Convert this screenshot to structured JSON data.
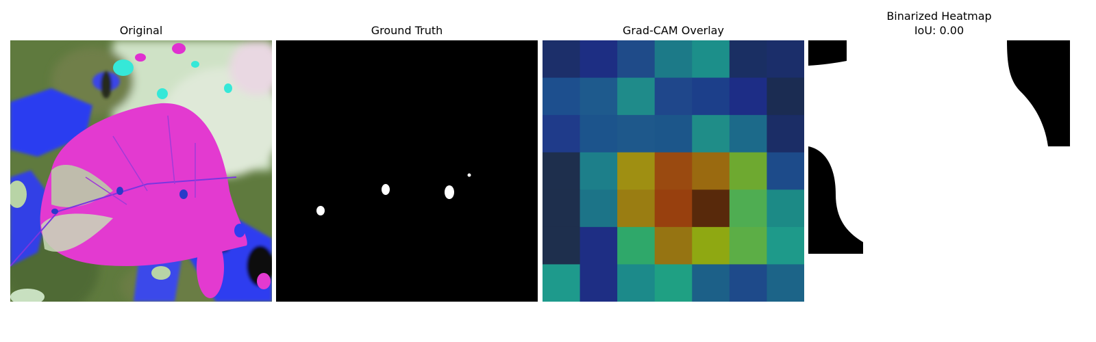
{
  "panels": {
    "original": {
      "title": "Original"
    },
    "ground_truth": {
      "title": "Ground Truth"
    },
    "gradcam": {
      "title": "Grad-CAM Overlay"
    },
    "binarized": {
      "title": "Binarized Heatmap",
      "subtitle": "IoU: 0.00"
    }
  },
  "heatmap": {
    "grid_size": 7,
    "cells": [
      [
        "#1c2f6a",
        "#1d2e83",
        "#1f4b89",
        "#1c7a88",
        "#1c8f8a",
        "#1a2f63",
        "#1b2e6a"
      ],
      [
        "#1d4f8e",
        "#1e5a8d",
        "#1f8b8a",
        "#1f478b",
        "#1c3f8a",
        "#1d2d86",
        "#1b2c52"
      ],
      [
        "#1f3b8a",
        "#1c548c",
        "#1e588b",
        "#1c568a",
        "#1f8d88",
        "#1c6a8a",
        "#1b2d66"
      ],
      [
        "#1e2f4d",
        "#1d7f8a",
        "#9f8f12",
        "#9a4a10",
        "#9a6a10",
        "#6ea930",
        "#1d4b8a"
      ],
      [
        "#1e2f4d",
        "#1c7488",
        "#9a7d12",
        "#98400e",
        "#58290b",
        "#4fad52",
        "#1c8a86"
      ],
      [
        "#1e2f4d",
        "#1e2e84",
        "#2fa86a",
        "#967412",
        "#8fa812",
        "#5cae46",
        "#1e9a8a"
      ],
      [
        "#1e9a8c",
        "#1e2e84",
        "#1c8a8a",
        "#1fa083",
        "#1c6088",
        "#1e4a8a",
        "#1c6488"
      ]
    ]
  }
}
